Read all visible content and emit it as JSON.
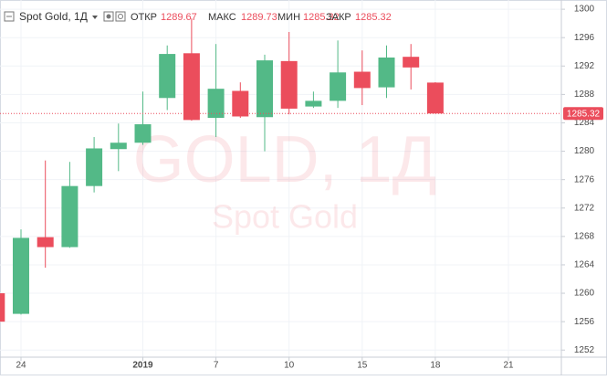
{
  "chart_data": {
    "type": "candlestick",
    "title": "Spot Gold, 1Д",
    "ohlc_header": {
      "open_label": "ОТКР",
      "open": 1289.67,
      "high_label": "МАКС",
      "high": 1289.73,
      "low_label": "МИН",
      "low": 1285.32,
      "close_label": "ЗАКР",
      "close": 1285.32
    },
    "watermark_title": "GOLD, 1Д",
    "watermark_subtitle": "Spot Gold",
    "categories": [
      null,
      "24",
      null,
      null,
      null,
      null,
      "2019",
      null,
      null,
      "7",
      null,
      null,
      "10",
      null,
      null,
      "15",
      null,
      null,
      "18",
      null,
      null,
      "21"
    ],
    "open": [
      1260,
      1257.1,
      1267.9,
      1266.5,
      1275.1,
      1280.3,
      1281.2,
      1287.5,
      1293.8,
      1284.7,
      1288.5,
      1284.8,
      1292.7,
      1286.3,
      1287.1,
      1291.2,
      1289.0,
      1293.3,
      1289.67,
      null,
      null,
      null
    ],
    "high": [
      1261,
      1269.0,
      1278.7,
      1278.5,
      1282.0,
      1283.9,
      1288.4,
      1294.9,
      1298.7,
      1295.1,
      1289.7,
      1293.6,
      1296.8,
      1288.4,
      1295.6,
      1294.2,
      1294.9,
      1295.1,
      1289.73,
      null,
      null,
      null
    ],
    "low": [
      1255,
      1257.0,
      1263.6,
      1266.4,
      1274.2,
      1277.2,
      1280.9,
      1285.8,
      1284.3,
      1282.0,
      1284.7,
      1280.0,
      1285.2,
      1286.1,
      1286.1,
      1286.5,
      1287.5,
      1288.7,
      1285.32,
      null,
      null,
      null
    ],
    "close": [
      1256,
      1267.8,
      1266.5,
      1275.1,
      1280.4,
      1281.2,
      1283.8,
      1293.7,
      1284.4,
      1288.8,
      1284.9,
      1292.8,
      1286.0,
      1287.1,
      1291.1,
      1288.9,
      1293.2,
      1291.8,
      1285.32,
      null,
      null,
      null
    ],
    "up_color": "#53b987",
    "down_color": "#eb4d5c",
    "ylim": [
      1251,
      1301.3
    ],
    "yticks": [
      1252,
      1256,
      1260,
      1264,
      1268,
      1272,
      1276,
      1280,
      1284,
      1288,
      1292,
      1296,
      1300
    ],
    "last_price": 1285.32,
    "grid": true
  }
}
